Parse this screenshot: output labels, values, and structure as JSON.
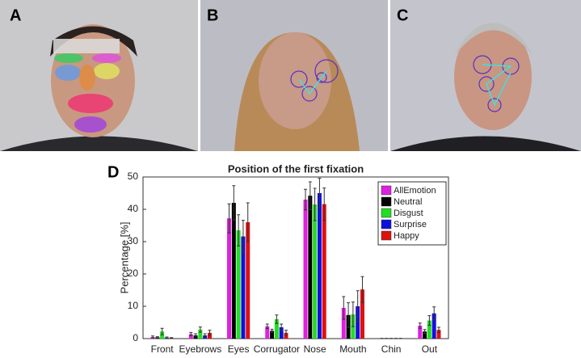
{
  "panel_labels": [
    "A",
    "B",
    "C",
    "D"
  ],
  "chart_data": {
    "type": "bar",
    "title": "Position of the first fixation",
    "ylabel": "Percentage [%]",
    "categories": [
      "Front",
      "Eyebrows",
      "Eyes",
      "Corrugator",
      "Nose",
      "Mouth",
      "Chin",
      "Out"
    ],
    "series": [
      {
        "name": "AllEmotion",
        "color": "#e020e0",
        "values": [
          0.5,
          1.4,
          37.2,
          3.8,
          43,
          9.5,
          0.1,
          4
        ],
        "errors": [
          0.3,
          0.5,
          4.5,
          0.7,
          3.2,
          3.5,
          0,
          0.8
        ]
      },
      {
        "name": "Neutral",
        "color": "#000000",
        "values": [
          0.4,
          1.0,
          42,
          2.4,
          44.2,
          7.3,
          0.1,
          2.2
        ],
        "errors": [
          0.2,
          0.5,
          5.3,
          0.5,
          4.3,
          3.8,
          0,
          0.6
        ]
      },
      {
        "name": "Disgust",
        "color": "#22dd22",
        "values": [
          2.2,
          2.8,
          33.5,
          6,
          41.5,
          7.5,
          0.1,
          5.6
        ],
        "errors": [
          1,
          0.8,
          4.8,
          1.3,
          5,
          3.8,
          0,
          1.5
        ]
      },
      {
        "name": "Surprise",
        "color": "#1010dd",
        "values": [
          0.3,
          1.0,
          31.6,
          3.5,
          45,
          10,
          0.1,
          7.8
        ],
        "errors": [
          0.2,
          0.5,
          5,
          1,
          4.6,
          4.8,
          0,
          2
        ]
      },
      {
        "name": "Happy",
        "color": "#dd1111",
        "values": [
          0.2,
          1.8,
          36,
          1.8,
          41.6,
          15.2,
          0.1,
          2.7
        ],
        "errors": [
          0.1,
          0.8,
          6,
          0.8,
          5,
          4,
          0,
          0.8
        ]
      }
    ],
    "ylim": [
      0,
      50
    ],
    "yticks": [
      0,
      10,
      20,
      30,
      40,
      50
    ],
    "grid": false,
    "legend": "top-right"
  }
}
